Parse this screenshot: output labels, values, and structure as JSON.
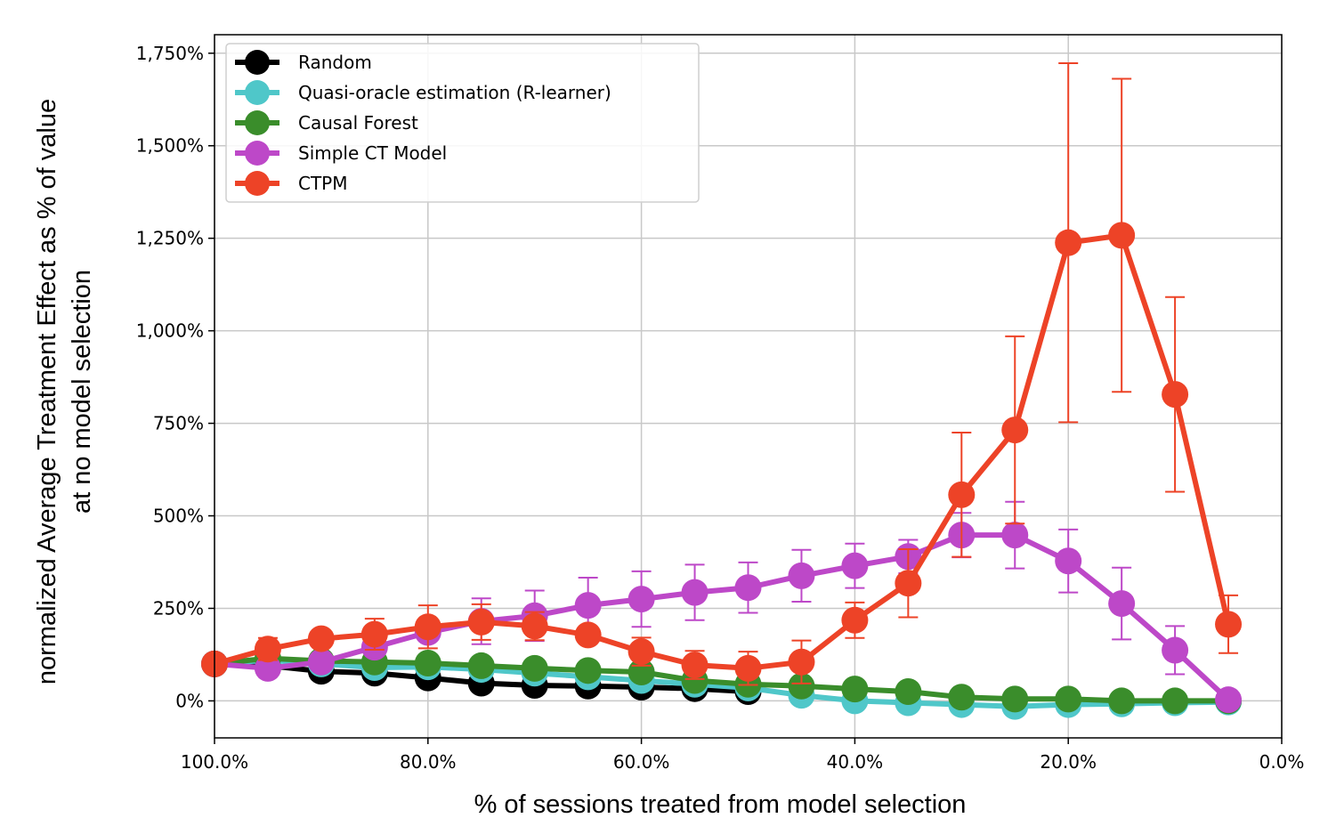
{
  "chart_data": {
    "type": "line",
    "title": "",
    "xlabel": "% of sessions treated from model selection",
    "ylabel_lines": [
      "normalized Average Treatment Effect as % of value",
      "at no model selection"
    ],
    "xlim": [
      100,
      0
    ],
    "ylim": [
      -100,
      1800
    ],
    "xticks": [
      100,
      80,
      60,
      40,
      20,
      0
    ],
    "xtick_labels": [
      "100.0%",
      "80.0%",
      "60.0%",
      "40.0%",
      "20.0%",
      "0.0%"
    ],
    "yticks": [
      0,
      250,
      500,
      750,
      1000,
      1250,
      1500,
      1750
    ],
    "ytick_labels": [
      "0%",
      "250%",
      "500%",
      "750%",
      "1,000%",
      "1,250%",
      "1,500%",
      "1,750%"
    ],
    "grid": true,
    "legend_position": "top-left",
    "x": [
      100,
      95,
      90,
      85,
      80,
      75,
      70,
      65,
      60,
      55,
      50,
      45,
      40,
      35,
      30,
      25,
      20,
      15,
      10,
      5
    ],
    "series": [
      {
        "name": "Random",
        "color": "#000000",
        "values": [
          100,
          95,
          80,
          75,
          62,
          48,
          42,
          40,
          37,
          33,
          25,
          null,
          null,
          null,
          null,
          null,
          null,
          null,
          null,
          null
        ]
      },
      {
        "name": "Quasi-oracle estimation (R-learner)",
        "color": "#4fc7c9",
        "values": [
          100,
          110,
          100,
          90,
          92,
          85,
          75,
          65,
          55,
          45,
          35,
          15,
          0,
          -5,
          -10,
          -15,
          -10,
          -8,
          -5,
          -3
        ]
      },
      {
        "name": "Causal Forest",
        "color": "#3a8d2b",
        "values": [
          100,
          115,
          108,
          105,
          102,
          95,
          88,
          82,
          78,
          55,
          45,
          40,
          32,
          25,
          10,
          5,
          5,
          0,
          0,
          0
        ]
      },
      {
        "name": "Simple CT Model",
        "color": "#bd48c8",
        "values": [
          100,
          88,
          105,
          145,
          185,
          215,
          230,
          258,
          275,
          293,
          306,
          338,
          365,
          390,
          448,
          448,
          378,
          263,
          137,
          3
        ],
        "errors": [
          0,
          0,
          0,
          0,
          0,
          62,
          68,
          75,
          75,
          75,
          68,
          70,
          60,
          45,
          60,
          90,
          85,
          97,
          65,
          0
        ]
      },
      {
        "name": "CTPM",
        "color": "#ed4327",
        "values": [
          100,
          140,
          168,
          180,
          200,
          213,
          202,
          178,
          133,
          97,
          88,
          105,
          218,
          318,
          557,
          732,
          1238,
          1258,
          828,
          207
        ],
        "errors": [
          0,
          30,
          0,
          42,
          58,
          48,
          38,
          0,
          38,
          38,
          45,
          58,
          48,
          92,
          168,
          253,
          485,
          423,
          263,
          78
        ]
      }
    ]
  }
}
